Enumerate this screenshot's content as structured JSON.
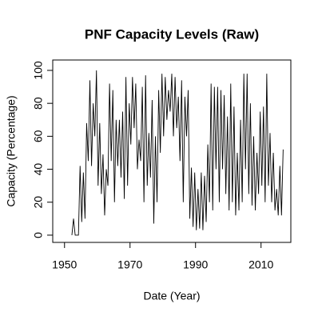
{
  "chart_data": {
    "type": "line",
    "title": "PNF Capacity Levels (Raw)",
    "x_label": "Date (Year)",
    "y_label": "Capacity (Percentage)",
    "x": [
      1952.25,
      1952.75,
      1953.25,
      1953.75,
      1954.25,
      1954.75,
      1955.25,
      1955.75,
      1956.25,
      1956.75,
      1957.25,
      1957.75,
      1958.25,
      1958.75,
      1959.25,
      1959.75,
      1960.25,
      1960.75,
      1961.25,
      1961.75,
      1962.25,
      1962.75,
      1963.25,
      1963.75,
      1964.25,
      1964.75,
      1965.25,
      1965.75,
      1966.25,
      1966.75,
      1967.25,
      1967.75,
      1968.25,
      1968.75,
      1969.25,
      1969.75,
      1970.25,
      1970.75,
      1971.25,
      1971.75,
      1972.25,
      1972.75,
      1973.25,
      1973.75,
      1974.25,
      1974.75,
      1975.25,
      1975.75,
      1976.25,
      1976.75,
      1977.25,
      1977.75,
      1978.25,
      1978.75,
      1979.25,
      1979.75,
      1980.25,
      1980.75,
      1981.25,
      1981.75,
      1982.25,
      1982.75,
      1983.25,
      1983.75,
      1984.25,
      1984.75,
      1985.25,
      1985.75,
      1986.25,
      1986.75,
      1987.25,
      1987.75,
      1988.25,
      1988.75,
      1989.25,
      1989.75,
      1990.25,
      1990.75,
      1991.25,
      1991.75,
      1992.25,
      1992.75,
      1993.25,
      1993.75,
      1994.25,
      1994.75,
      1995.25,
      1995.75,
      1996.25,
      1996.75,
      1997.25,
      1997.75,
      1998.25,
      1998.75,
      1999.25,
      1999.75,
      2000.25,
      2000.75,
      2001.25,
      2001.75,
      2002.25,
      2002.75,
      2003.25,
      2003.75,
      2004.25,
      2004.75,
      2005.25,
      2005.75,
      2006.25,
      2006.75,
      2007.25,
      2007.75,
      2008.25,
      2008.75,
      2009.25,
      2009.75,
      2010.25,
      2010.75,
      2011.25,
      2011.75,
      2012.25,
      2012.75,
      2013.25,
      2013.75,
      2014.25,
      2014.75,
      2015.25,
      2015.75,
      2016.25,
      2016.75
    ],
    "values": [
      0,
      10,
      0,
      0,
      0,
      42,
      8,
      38,
      10,
      68,
      45,
      94,
      42,
      80,
      60,
      100,
      30,
      68,
      25,
      49,
      12,
      40,
      30,
      92,
      45,
      88,
      20,
      70,
      42,
      70,
      35,
      75,
      22,
      96,
      30,
      80,
      55,
      96,
      65,
      92,
      40,
      58,
      45,
      90,
      20,
      97,
      30,
      62,
      35,
      82,
      7,
      60,
      20,
      88,
      50,
      98,
      60,
      96,
      70,
      88,
      75,
      98,
      60,
      96,
      65,
      84,
      45,
      94,
      20,
      84,
      60,
      88,
      10,
      41,
      5,
      38,
      3,
      28,
      4,
      38,
      3,
      36,
      8,
      55,
      20,
      92,
      15,
      90,
      40,
      90,
      20,
      88,
      40,
      85,
      25,
      72,
      15,
      92,
      20,
      78,
      12,
      50,
      15,
      70,
      20,
      98,
      40,
      98,
      25,
      80,
      18,
      60,
      15,
      50,
      25,
      75,
      30,
      78,
      20,
      98,
      30,
      62,
      20,
      50,
      15,
      28,
      12,
      42,
      12,
      52
    ],
    "color": "#000000",
    "xlim": [
      1946.4,
      2019.1
    ],
    "ylim": [
      -4.4,
      106.3
    ],
    "xticks": [
      1950,
      1970,
      1990,
      2010
    ],
    "yticks": [
      0,
      20,
      40,
      60,
      80,
      100
    ],
    "grid": false
  }
}
